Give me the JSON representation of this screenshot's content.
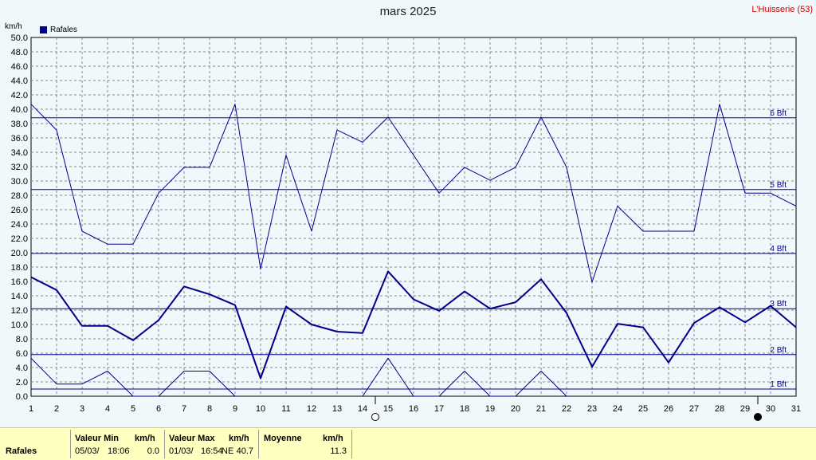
{
  "header": {
    "title": "mars 2025",
    "station": "L'Huisserie (53)",
    "unit": "km/h",
    "legend_label": "Rafales"
  },
  "colors": {
    "series": "#00008b",
    "background": "#f0f8fc",
    "grid": "#888888",
    "station": "#cc0000",
    "stats_bg": "#ffffc0"
  },
  "chart_data": {
    "type": "line",
    "title": "mars 2025",
    "ylabel": "km/h",
    "ylim": [
      0,
      50
    ],
    "xlim": [
      1,
      31
    ],
    "yticks": [
      "0.0",
      "2.0",
      "4.0",
      "6.0",
      "8.0",
      "10.0",
      "12.0",
      "14.0",
      "16.0",
      "18.0",
      "20.0",
      "22.0",
      "24.0",
      "26.0",
      "28.0",
      "30.0",
      "32.0",
      "34.0",
      "36.0",
      "38.0",
      "40.0",
      "42.0",
      "44.0",
      "46.0",
      "48.0",
      "50.0"
    ],
    "xticks": [
      "1",
      "2",
      "3",
      "4",
      "5",
      "6",
      "7",
      "8",
      "9",
      "10",
      "11",
      "12",
      "13",
      "14",
      "15",
      "16",
      "17",
      "18",
      "19",
      "20",
      "21",
      "22",
      "23",
      "24",
      "25",
      "26",
      "27",
      "28",
      "29",
      "30",
      "31"
    ],
    "grid": true,
    "legend_placement": "top-left",
    "x": [
      1,
      2,
      3,
      4,
      5,
      6,
      7,
      8,
      9,
      10,
      11,
      12,
      13,
      14,
      15,
      16,
      17,
      18,
      19,
      20,
      21,
      22,
      23,
      24,
      25,
      26,
      27,
      28,
      29,
      30,
      31
    ],
    "series": [
      {
        "name": "Rafales",
        "role": "max",
        "values": [
          40.7,
          37.1,
          23.0,
          21.2,
          21.2,
          28.3,
          31.9,
          31.9,
          40.7,
          17.7,
          33.6,
          23.0,
          37.1,
          35.4,
          38.9,
          33.6,
          28.3,
          31.9,
          30.1,
          31.9,
          38.9,
          31.9,
          15.9,
          26.5,
          23.0,
          23.0,
          23.0,
          40.7,
          28.3,
          28.3,
          26.5
        ]
      },
      {
        "name": "Rafales",
        "role": "mean",
        "values": [
          16.6,
          14.8,
          9.8,
          9.8,
          7.8,
          10.6,
          15.3,
          14.2,
          12.7,
          2.5,
          12.5,
          10.0,
          9.0,
          8.8,
          17.4,
          13.5,
          11.9,
          14.6,
          12.2,
          13.1,
          16.3,
          11.6,
          4.1,
          10.1,
          9.6,
          4.7,
          10.2,
          12.4,
          10.3,
          12.6,
          9.6
        ]
      },
      {
        "name": "Rafales",
        "role": "min",
        "values": [
          5.3,
          1.7,
          1.7,
          3.5,
          0.0,
          0.0,
          3.5,
          3.5,
          0.0,
          null,
          null,
          null,
          null,
          0.0,
          5.3,
          0.0,
          0.0,
          3.5,
          0.0,
          0.0,
          3.5,
          0.0,
          null,
          null,
          null,
          null,
          null,
          null,
          null,
          null,
          null
        ]
      }
    ],
    "beaufort_lines": [
      {
        "label": "1 Bft",
        "value": 1.0
      },
      {
        "label": "2 Bft",
        "value": 5.8
      },
      {
        "label": "3 Bft",
        "value": 12.2
      },
      {
        "label": "4 Bft",
        "value": 19.9
      },
      {
        "label": "5 Bft",
        "value": 28.8
      },
      {
        "label": "6 Bft",
        "value": 38.8
      }
    ],
    "moon_markers": [
      {
        "day": 14.5,
        "phase": "full",
        "icon": "full-moon-icon"
      },
      {
        "day": 29.5,
        "phase": "new",
        "icon": "new-moon-icon"
      }
    ]
  },
  "stats": {
    "series_label": "Rafales",
    "min": {
      "header": "Valeur Min",
      "unit": "km/h",
      "date": "05/03/",
      "time": "18:06",
      "value": "0.0"
    },
    "max": {
      "header": "Valeur Max",
      "unit": "km/h",
      "date": "01/03/",
      "time": "16:54",
      "dir": "NE",
      "value": "40.7"
    },
    "mean": {
      "header": "Moyenne",
      "unit": "km/h",
      "value": "11.3"
    }
  }
}
